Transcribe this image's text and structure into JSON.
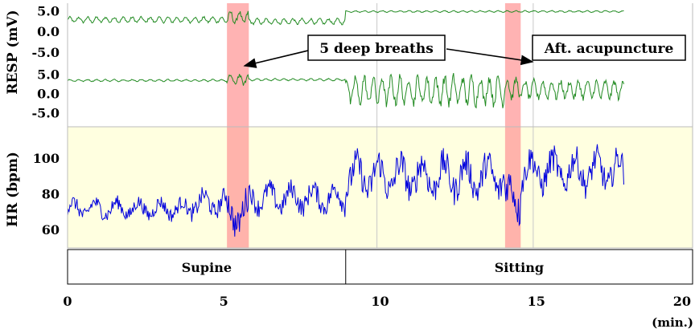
{
  "chart_data": [
    {
      "type": "line",
      "panel": "resp-top",
      "ylabel": "RESP (mV)",
      "ylim": [
        -8.5,
        7.0
      ],
      "yticks": [
        "5.0",
        "0.0",
        "-5.0"
      ],
      "ytick_values": [
        5.0,
        0.0,
        -5.0
      ],
      "series": [
        {
          "color": "#228b22",
          "segments": [
            {
              "x_range": [
                0.0,
                5.1
              ],
              "level": 3.0,
              "amplitude": 1.0
            },
            {
              "x_range": [
                5.1,
                5.8
              ],
              "level": 3.5,
              "amplitude": 2.2
            },
            {
              "x_range": [
                5.8,
                8.9
              ],
              "level": 2.6,
              "amplitude": 1.0
            },
            {
              "x_range": [
                8.9,
                17.8
              ],
              "level": 5.0,
              "amplitude": 0.3
            }
          ]
        }
      ]
    },
    {
      "type": "line",
      "panel": "resp-bottom",
      "ylabel": "RESP (mV)",
      "ylim": [
        -8.5,
        7.0
      ],
      "yticks": [
        "5.0",
        "0.0",
        "-5.0"
      ],
      "ytick_values": [
        5.0,
        0.0,
        -5.0
      ],
      "series": [
        {
          "color": "#228b22",
          "segments": [
            {
              "x_range": [
                0.0,
                5.1
              ],
              "level": 3.6,
              "amplitude": 0.4
            },
            {
              "x_range": [
                5.1,
                5.8
              ],
              "level": 3.8,
              "amplitude": 2.0
            },
            {
              "x_range": [
                5.8,
                8.9
              ],
              "level": 3.8,
              "amplitude": 0.4
            },
            {
              "x_range": [
                8.9,
                14.0
              ],
              "level": 1.0,
              "amplitude": 5.5
            },
            {
              "x_range": [
                14.0,
                14.5
              ],
              "level": 1.5,
              "amplitude": 4.0
            },
            {
              "x_range": [
                14.5,
                17.8
              ],
              "level": 1.2,
              "amplitude": 3.5
            }
          ]
        }
      ]
    },
    {
      "type": "line",
      "panel": "hr",
      "ylabel": "HR (bpm)",
      "ylim": [
        50,
        118
      ],
      "yticks": [
        "100",
        "80",
        "60"
      ],
      "ytick_values": [
        100,
        80,
        60
      ],
      "series": [
        {
          "color": "#0000dd",
          "segments": [
            {
              "x_range": [
                0.0,
                4.0
              ],
              "mean": 72,
              "amplitude": 7
            },
            {
              "x_range": [
                4.0,
                5.1
              ],
              "mean": 75,
              "amplitude": 9
            },
            {
              "x_range": [
                5.1,
                5.8
              ],
              "mean": 70,
              "amplitude": 14
            },
            {
              "x_range": [
                5.8,
                8.9
              ],
              "mean": 78,
              "amplitude": 10
            },
            {
              "x_range": [
                8.9,
                14.0
              ],
              "mean": 90,
              "amplitude": 15
            },
            {
              "x_range": [
                14.0,
                14.5
              ],
              "mean": 78,
              "amplitude": 16
            },
            {
              "x_range": [
                14.5,
                17.8
              ],
              "mean": 93,
              "amplitude": 14
            }
          ]
        }
      ]
    }
  ],
  "x_axis": {
    "ticks": [
      "0",
      "5",
      "10",
      "15",
      "20"
    ],
    "tick_values": [
      0,
      5,
      10,
      15,
      20
    ],
    "unit": "(min.)",
    "xlim": [
      0,
      20
    ]
  },
  "highlights": [
    {
      "x_range": [
        5.1,
        5.8
      ],
      "color": "#ff9999"
    },
    {
      "x_range": [
        14.0,
        14.5
      ],
      "color": "#ff9999"
    }
  ],
  "gridlines_x": [
    9.9,
    14.9
  ],
  "annotations": {
    "deep_breaths": "5 deep breaths",
    "after_acupuncture": "Aft. acupuncture"
  },
  "posture": {
    "labels": [
      "Supine",
      "Sitting"
    ],
    "boundaries": [
      0,
      8.9,
      20
    ]
  },
  "colors": {
    "hr_background": "#ffffe0",
    "resp_trace": "#228b22",
    "hr_trace": "#0000dd",
    "highlight": "#ff9999"
  }
}
